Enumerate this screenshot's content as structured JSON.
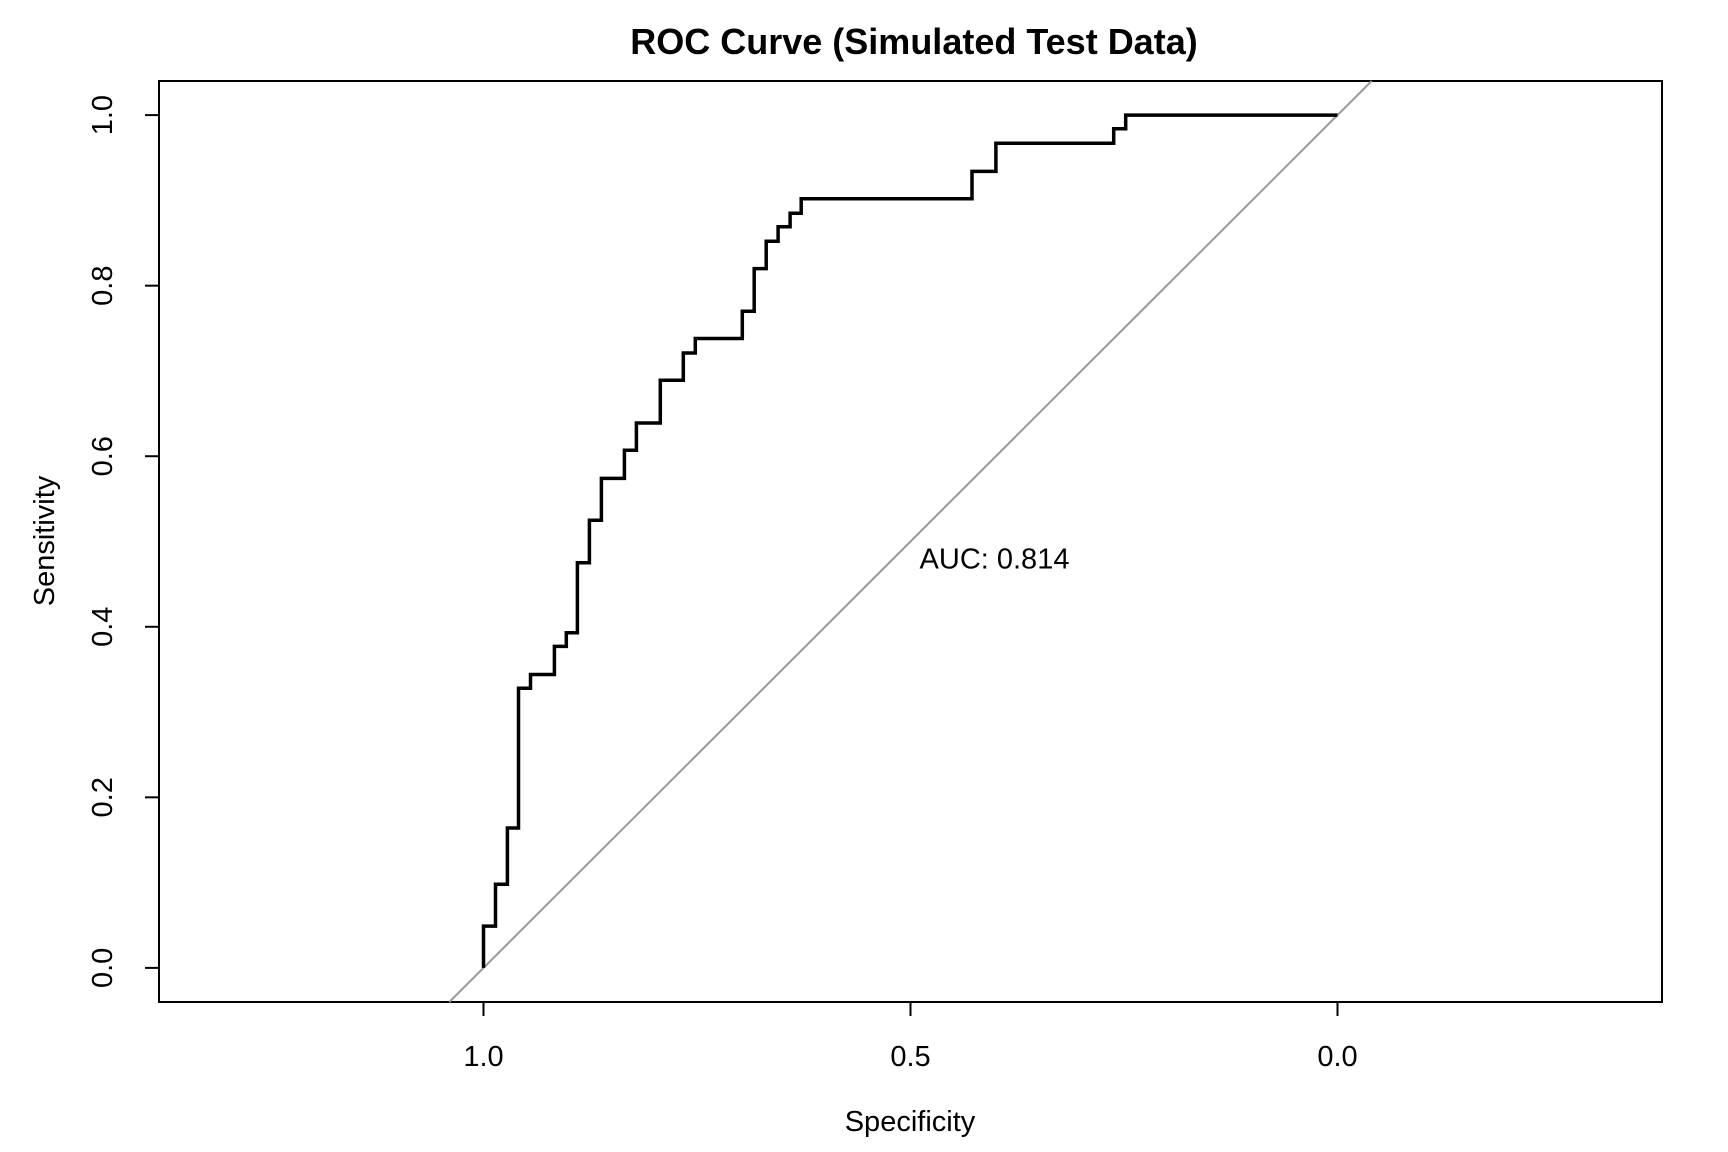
{
  "chart_data": {
    "type": "line",
    "title": "ROC Curve (Simulated Test Data)",
    "xlabel": "Specificity",
    "ylabel": "Sensitivity",
    "x_reversed": true,
    "xlim": [
      1.38,
      -0.38
    ],
    "ylim": [
      -0.04,
      1.04
    ],
    "x_ticks": [
      1.0,
      0.5,
      0.0
    ],
    "x_tick_labels": [
      "1.0",
      "0.5",
      "0.0"
    ],
    "y_ticks": [
      0.0,
      0.2,
      0.4,
      0.6,
      0.8,
      1.0
    ],
    "y_tick_labels": [
      "0.0",
      "0.2",
      "0.4",
      "0.6",
      "0.8",
      "1.0"
    ],
    "annotation": {
      "text": "AUC: 0.814",
      "x": 0.5,
      "y": 0.48
    },
    "reference_line": {
      "from": [
        1.04,
        -0.04
      ],
      "to": [
        -0.04,
        1.04
      ],
      "color": "#999999"
    },
    "series": [
      {
        "color": "#000000",
        "points": [
          [
            1.0,
            0.0
          ],
          [
            1.0,
            0.049
          ],
          [
            0.986,
            0.049
          ],
          [
            0.986,
            0.098
          ],
          [
            0.972,
            0.098
          ],
          [
            0.972,
            0.164
          ],
          [
            0.959,
            0.164
          ],
          [
            0.959,
            0.328
          ],
          [
            0.945,
            0.328
          ],
          [
            0.945,
            0.344
          ],
          [
            0.917,
            0.344
          ],
          [
            0.917,
            0.377
          ],
          [
            0.903,
            0.377
          ],
          [
            0.903,
            0.393
          ],
          [
            0.89,
            0.393
          ],
          [
            0.89,
            0.475
          ],
          [
            0.876,
            0.475
          ],
          [
            0.876,
            0.525
          ],
          [
            0.862,
            0.525
          ],
          [
            0.862,
            0.574
          ],
          [
            0.835,
            0.574
          ],
          [
            0.835,
            0.607
          ],
          [
            0.821,
            0.607
          ],
          [
            0.821,
            0.639
          ],
          [
            0.793,
            0.639
          ],
          [
            0.793,
            0.689
          ],
          [
            0.766,
            0.689
          ],
          [
            0.766,
            0.721
          ],
          [
            0.752,
            0.721
          ],
          [
            0.752,
            0.738
          ],
          [
            0.697,
            0.738
          ],
          [
            0.697,
            0.77
          ],
          [
            0.683,
            0.77
          ],
          [
            0.683,
            0.82
          ],
          [
            0.669,
            0.82
          ],
          [
            0.669,
            0.852
          ],
          [
            0.655,
            0.852
          ],
          [
            0.655,
            0.869
          ],
          [
            0.641,
            0.869
          ],
          [
            0.641,
            0.885
          ],
          [
            0.628,
            0.885
          ],
          [
            0.628,
            0.902
          ],
          [
            0.428,
            0.902
          ],
          [
            0.428,
            0.934
          ],
          [
            0.4,
            0.934
          ],
          [
            0.4,
            0.967
          ],
          [
            0.262,
            0.967
          ],
          [
            0.262,
            0.984
          ],
          [
            0.248,
            0.984
          ],
          [
            0.248,
            1.0
          ],
          [
            0.0,
            1.0
          ]
        ]
      }
    ]
  }
}
